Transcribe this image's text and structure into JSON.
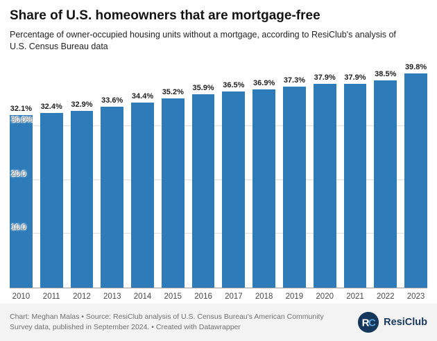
{
  "header": {
    "title": "Share of U.S. homeowners that are mortgage-free",
    "subtitle": "Percentage of owner-occupied housing units without a mortgage, according to ResiClub's analysis of U.S. Census Bureau data"
  },
  "chart_data": {
    "type": "bar",
    "categories": [
      "2010",
      "2011",
      "2012",
      "2013",
      "2014",
      "2015",
      "2016",
      "2017",
      "2018",
      "2019",
      "2020",
      "2021",
      "2022",
      "2023"
    ],
    "values": [
      32.1,
      32.4,
      32.9,
      33.6,
      34.4,
      35.2,
      35.9,
      36.5,
      36.9,
      37.3,
      37.9,
      37.9,
      38.5,
      39.8
    ],
    "value_label_suffix": "%",
    "title": "Share of U.S. homeowners that are mortgage-free",
    "xlabel": "",
    "ylabel": "",
    "ylim": [
      0,
      40
    ],
    "yticks": [
      {
        "value": 10,
        "label": "10.0"
      },
      {
        "value": 20,
        "label": "20.0"
      },
      {
        "value": 30,
        "label": "30.0%"
      }
    ],
    "grid": true,
    "legend": "none",
    "bar_color": "#2d7bb9"
  },
  "colors": {
    "bar": "#2d7bb9",
    "gridline": "#dddddd",
    "axis_baseline": "#9a9a9a",
    "brand_navy": "#16375c",
    "brand_blue": "#5aa2d8",
    "footer_bg": "#f3f3f3"
  },
  "footer": {
    "credit": "Chart: Meghan Malas • Source: ResiClub analysis of U.S. Census Bureau's American Community Survey data, published in September 2024. • Created with Datawrapper",
    "logo_text": "ResiClub"
  }
}
